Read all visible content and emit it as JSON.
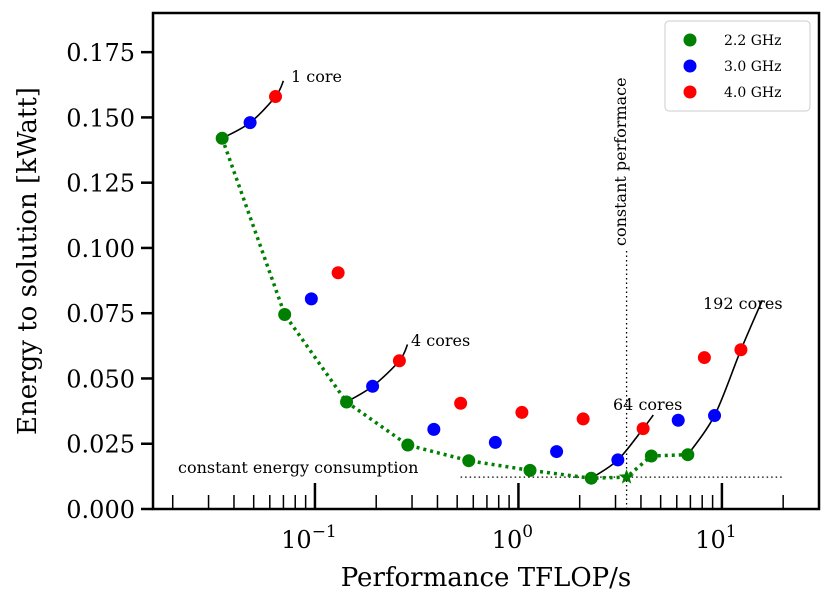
{
  "chart_data": {
    "type": "scatter",
    "title": "",
    "xlabel": "Performance TFLOP/s",
    "ylabel": "Energy to solution [kWatt]",
    "xscale": "log",
    "xlim": [
      0.016,
      30
    ],
    "ylim": [
      0.0,
      0.19
    ],
    "x_tick_labels": [
      {
        "value": 0.1,
        "base": "10",
        "exp": "−1"
      },
      {
        "value": 1,
        "base": "10",
        "exp": "0"
      },
      {
        "value": 10,
        "base": "10",
        "exp": "1"
      }
    ],
    "y_ticks": [
      0.0,
      0.025,
      0.05,
      0.075,
      0.1,
      0.125,
      0.15,
      0.175
    ],
    "y_tick_labels": [
      "0.000",
      "0.025",
      "0.050",
      "0.075",
      "0.100",
      "0.125",
      "0.150",
      "0.175"
    ],
    "legend": {
      "position": "top-right",
      "entries": [
        {
          "label": "2.2 GHz",
          "color": "#008000"
        },
        {
          "label": "3.0 GHz",
          "color": "#0000ff"
        },
        {
          "label": "4.0 GHz",
          "color": "#ff0000"
        }
      ]
    },
    "series": [
      {
        "name": "2.2 GHz",
        "color": "#008000",
        "x": [
          0.035,
          0.071,
          0.143,
          0.286,
          0.57,
          1.14,
          2.28,
          4.5,
          6.8
        ],
        "y": [
          0.142,
          0.0745,
          0.041,
          0.0245,
          0.0185,
          0.0148,
          0.0118,
          0.0203,
          0.0208
        ]
      },
      {
        "name": "3.0 GHz",
        "color": "#0000ff",
        "x": [
          0.048,
          0.096,
          0.192,
          0.384,
          0.77,
          1.54,
          3.08,
          6.1,
          9.2
        ],
        "y": [
          0.148,
          0.0805,
          0.047,
          0.0305,
          0.0255,
          0.022,
          0.0188,
          0.034,
          0.0358
        ]
      },
      {
        "name": "4.0 GHz",
        "color": "#ff0000",
        "x": [
          0.064,
          0.13,
          0.26,
          0.52,
          1.04,
          2.08,
          4.1,
          8.2,
          12.4
        ],
        "y": [
          0.158,
          0.0905,
          0.0568,
          0.0405,
          0.037,
          0.0345,
          0.0308,
          0.058,
          0.061
        ]
      }
    ],
    "optimal_path": {
      "color": "#008000",
      "style": "dotted",
      "x": [
        0.035,
        0.071,
        0.143,
        0.286,
        0.57,
        1.14,
        2.28,
        3.4,
        4.5,
        6.8
      ],
      "y": [
        0.142,
        0.0745,
        0.041,
        0.0245,
        0.0185,
        0.0148,
        0.0118,
        0.0122,
        0.0203,
        0.0208
      ]
    },
    "star_marker": {
      "x": 3.4,
      "y": 0.0122,
      "color": "#008000"
    },
    "core_curves": [
      {
        "label": "1 core",
        "x": [
          0.035,
          0.048,
          0.064,
          0.07
        ],
        "y": [
          0.142,
          0.148,
          0.158,
          0.164
        ]
      },
      {
        "label": "4 cores",
        "x": [
          0.143,
          0.192,
          0.26,
          0.285
        ],
        "y": [
          0.041,
          0.047,
          0.0568,
          0.063
        ]
      },
      {
        "label": "64 cores",
        "x": [
          2.28,
          3.08,
          4.1,
          4.6
        ],
        "y": [
          0.0118,
          0.0188,
          0.0308,
          0.036
        ]
      },
      {
        "label": "192 cores",
        "x": [
          6.8,
          9.2,
          12.4,
          15.8
        ],
        "y": [
          0.0208,
          0.0358,
          0.061,
          0.08
        ]
      }
    ],
    "reference_lines": {
      "constant_energy": {
        "label": "constant energy consumption",
        "y": 0.0122,
        "x_from": 0.52,
        "x_to": 20
      },
      "constant_performance": {
        "label": "constant performace",
        "x": 3.4,
        "y_from": 0.0,
        "y_to": 0.1
      }
    }
  }
}
